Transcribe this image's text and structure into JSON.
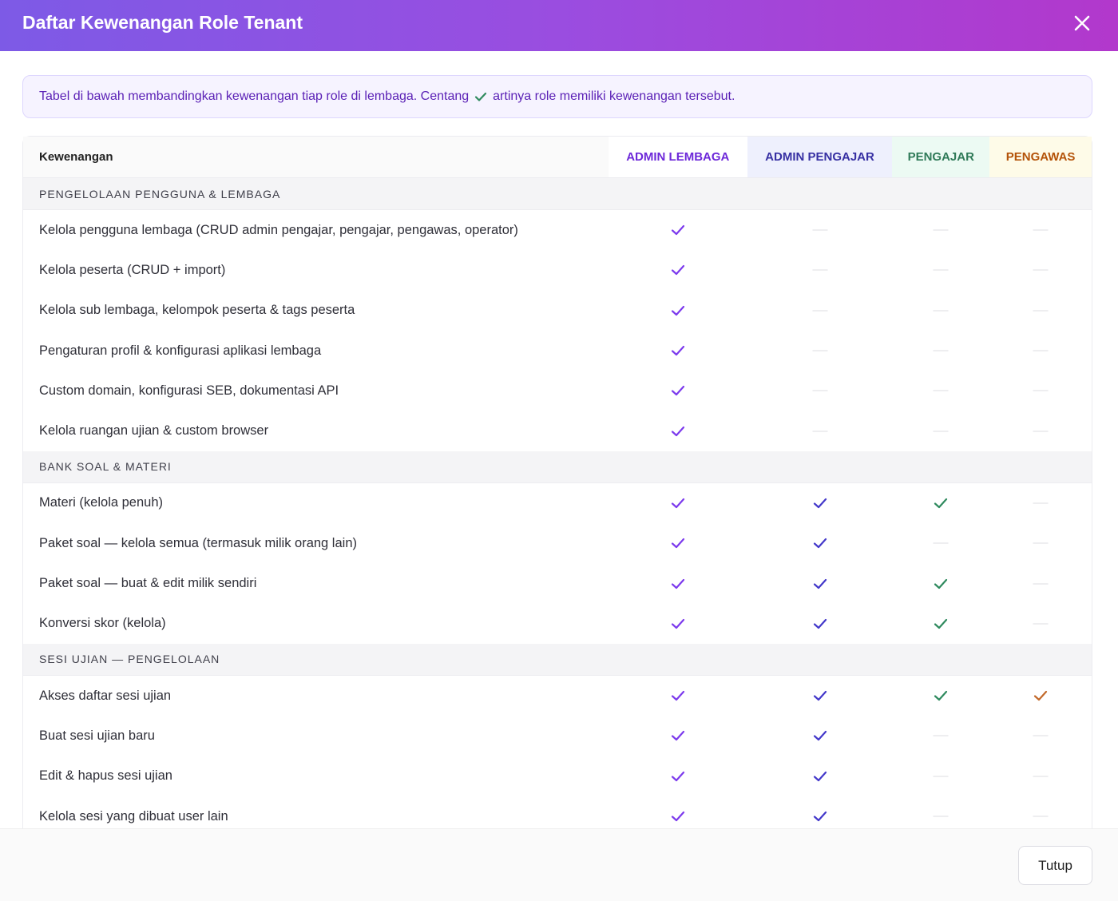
{
  "header": {
    "title": "Daftar Kewenangan Role Tenant"
  },
  "notice": {
    "before": "Tabel di bawah membandingkan kewenangan tiap role di lembaga. Centang",
    "after": "artinya role memiliki kewenangan tersebut."
  },
  "table": {
    "columns": [
      "Kewenangan",
      "ADMIN LEMBAGA",
      "ADMIN PENGAJAR",
      "PENGAJAR",
      "PENGAWAS"
    ],
    "sections": [
      {
        "title": "PENGELOLAAN PENGGUNA & LEMBAGA",
        "rows": [
          {
            "label": "Kelola pengguna lembaga (CRUD admin pengajar, pengajar, pengawas, operator)",
            "access": [
              true,
              false,
              false,
              false
            ]
          },
          {
            "label": "Kelola peserta (CRUD + import)",
            "access": [
              true,
              false,
              false,
              false
            ]
          },
          {
            "label": "Kelola sub lembaga, kelompok peserta & tags peserta",
            "access": [
              true,
              false,
              false,
              false
            ]
          },
          {
            "label": "Pengaturan profil & konfigurasi aplikasi lembaga",
            "access": [
              true,
              false,
              false,
              false
            ]
          },
          {
            "label": "Custom domain, konfigurasi SEB, dokumentasi API",
            "access": [
              true,
              false,
              false,
              false
            ]
          },
          {
            "label": "Kelola ruangan ujian & custom browser",
            "access": [
              true,
              false,
              false,
              false
            ]
          }
        ]
      },
      {
        "title": "BANK SOAL & MATERI",
        "rows": [
          {
            "label": "Materi (kelola penuh)",
            "access": [
              true,
              true,
              true,
              false
            ]
          },
          {
            "label": "Paket soal — kelola semua (termasuk milik orang lain)",
            "access": [
              true,
              true,
              false,
              false
            ]
          },
          {
            "label": "Paket soal — buat & edit milik sendiri",
            "access": [
              true,
              true,
              true,
              false
            ]
          },
          {
            "label": "Konversi skor (kelola)",
            "access": [
              true,
              true,
              true,
              false
            ]
          }
        ]
      },
      {
        "title": "SESI UJIAN — PENGELOLAAN",
        "rows": [
          {
            "label": "Akses daftar sesi ujian",
            "access": [
              true,
              true,
              true,
              true
            ]
          },
          {
            "label": "Buat sesi ujian baru",
            "access": [
              true,
              true,
              false,
              false
            ]
          },
          {
            "label": "Edit & hapus sesi ujian",
            "access": [
              true,
              true,
              false,
              false
            ]
          },
          {
            "label": "Kelola sesi yang dibuat user lain",
            "access": [
              true,
              true,
              false,
              false
            ]
          }
        ]
      }
    ]
  },
  "footer": {
    "button": "Tutup"
  }
}
